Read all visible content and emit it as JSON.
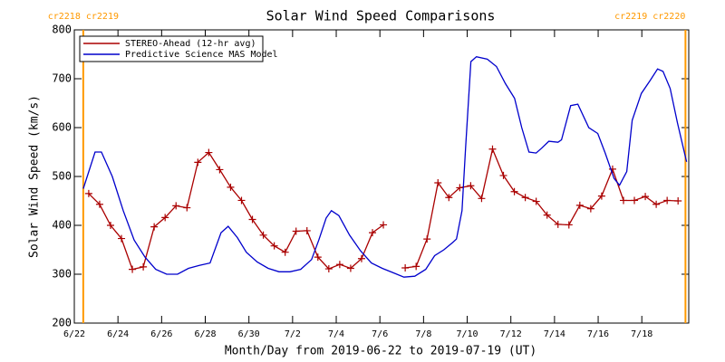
{
  "chart_data": {
    "type": "line",
    "title": "Solar Wind Speed Comparisons",
    "xlabel": "Month/Day from 2019-06-22 to 2019-07-19 (UT)",
    "ylabel": "Solar Wind Speed (km/s)",
    "xlim": [
      0,
      28.15
    ],
    "ylim": [
      200,
      800
    ],
    "yticks": [
      200,
      300,
      400,
      500,
      600,
      700,
      800
    ],
    "xticks": [
      {
        "value": 0,
        "label": "6/22"
      },
      {
        "value": 2,
        "label": "6/24"
      },
      {
        "value": 4,
        "label": "6/26"
      },
      {
        "value": 6,
        "label": "6/28"
      },
      {
        "value": 8,
        "label": "6/30"
      },
      {
        "value": 10,
        "label": "7/2"
      },
      {
        "value": 12,
        "label": "7/4"
      },
      {
        "value": 14,
        "label": "7/6"
      },
      {
        "value": 16,
        "label": "7/8"
      },
      {
        "value": 18,
        "label": "7/10"
      },
      {
        "value": 20,
        "label": "7/12"
      },
      {
        "value": 22,
        "label": "7/14"
      },
      {
        "value": 24,
        "label": "7/16"
      },
      {
        "value": 26,
        "label": "7/18"
      }
    ],
    "annotations": [
      {
        "text": "cr2218 cr2219",
        "x": 0.41,
        "color": "#ff9900"
      },
      {
        "text": "cr2219 cr2220",
        "x": 28.0,
        "color": "#ff9900"
      }
    ],
    "legend": "upper left",
    "series": [
      {
        "name": "STEREO-Ahead (12-hr avg)",
        "color": "#aa0000",
        "markers": true,
        "x": [
          0.66,
          1.16,
          1.66,
          2.16,
          2.66,
          3.16,
          3.66,
          4.16,
          4.66,
          5.16,
          5.66,
          6.16,
          6.66,
          7.16,
          7.66,
          8.16,
          8.66,
          9.16,
          9.66,
          10.16,
          10.66,
          11.16,
          11.66,
          12.16,
          12.66,
          13.16,
          13.66,
          14.16,
          14.66,
          15.16,
          15.66,
          16.16,
          16.66,
          17.16,
          17.66,
          18.16,
          18.66,
          19.16,
          19.66,
          20.16,
          20.66,
          21.16,
          21.66,
          22.16,
          22.66,
          23.16,
          23.66,
          24.16,
          24.66,
          25.16,
          25.66,
          26.16,
          26.66,
          27.16,
          27.66
        ],
        "values": [
          465,
          443,
          400,
          373,
          310,
          315,
          397,
          416,
          440,
          436,
          529,
          549,
          514,
          478,
          451,
          412,
          380,
          358,
          345,
          388,
          389,
          335,
          311,
          320,
          312,
          332,
          385,
          401,
          null,
          313,
          316,
          372,
          487,
          457,
          477,
          481,
          455,
          556,
          502,
          469,
          457,
          449,
          421,
          402,
          401,
          441,
          434,
          460,
          515,
          451,
          451,
          459,
          443,
          451,
          450
        ]
      },
      {
        "name": "Predictive Science MAS Model",
        "color": "#0000cc",
        "markers": false,
        "x": [
          0.41,
          0.95,
          1.24,
          1.74,
          2.24,
          2.74,
          3.24,
          3.73,
          4.23,
          4.73,
          5.23,
          5.73,
          6.22,
          6.72,
          7.05,
          7.47,
          7.88,
          8.38,
          8.88,
          9.38,
          9.88,
          10.37,
          10.87,
          11.2,
          11.54,
          11.78,
          12.12,
          12.61,
          13.11,
          13.61,
          14.11,
          14.61,
          15.1,
          15.6,
          16.1,
          16.51,
          16.93,
          17.34,
          17.51,
          17.76,
          17.93,
          18.17,
          18.42,
          18.92,
          19.34,
          19.75,
          20.17,
          20.5,
          20.83,
          21.16,
          21.41,
          21.74,
          22.16,
          22.32,
          22.74,
          23.07,
          23.57,
          23.98,
          24.32,
          24.73,
          24.98,
          25.31,
          25.56,
          25.98,
          26.39,
          26.72,
          26.97,
          27.3,
          27.63,
          28.05
        ],
        "values": [
          475,
          550,
          550,
          500,
          430,
          370,
          335,
          310,
          300,
          300,
          312,
          318,
          323,
          385,
          398,
          375,
          345,
          325,
          312,
          305,
          305,
          310,
          330,
          370,
          415,
          430,
          420,
          380,
          348,
          323,
          312,
          303,
          294,
          296,
          310,
          338,
          350,
          365,
          372,
          430,
          560,
          735,
          745,
          740,
          725,
          690,
          660,
          600,
          550,
          548,
          558,
          572,
          570,
          575,
          645,
          648,
          600,
          588,
          548,
          496,
          482,
          510,
          615,
          670,
          697,
          720,
          715,
          680,
          610,
          530
        ]
      }
    ]
  }
}
